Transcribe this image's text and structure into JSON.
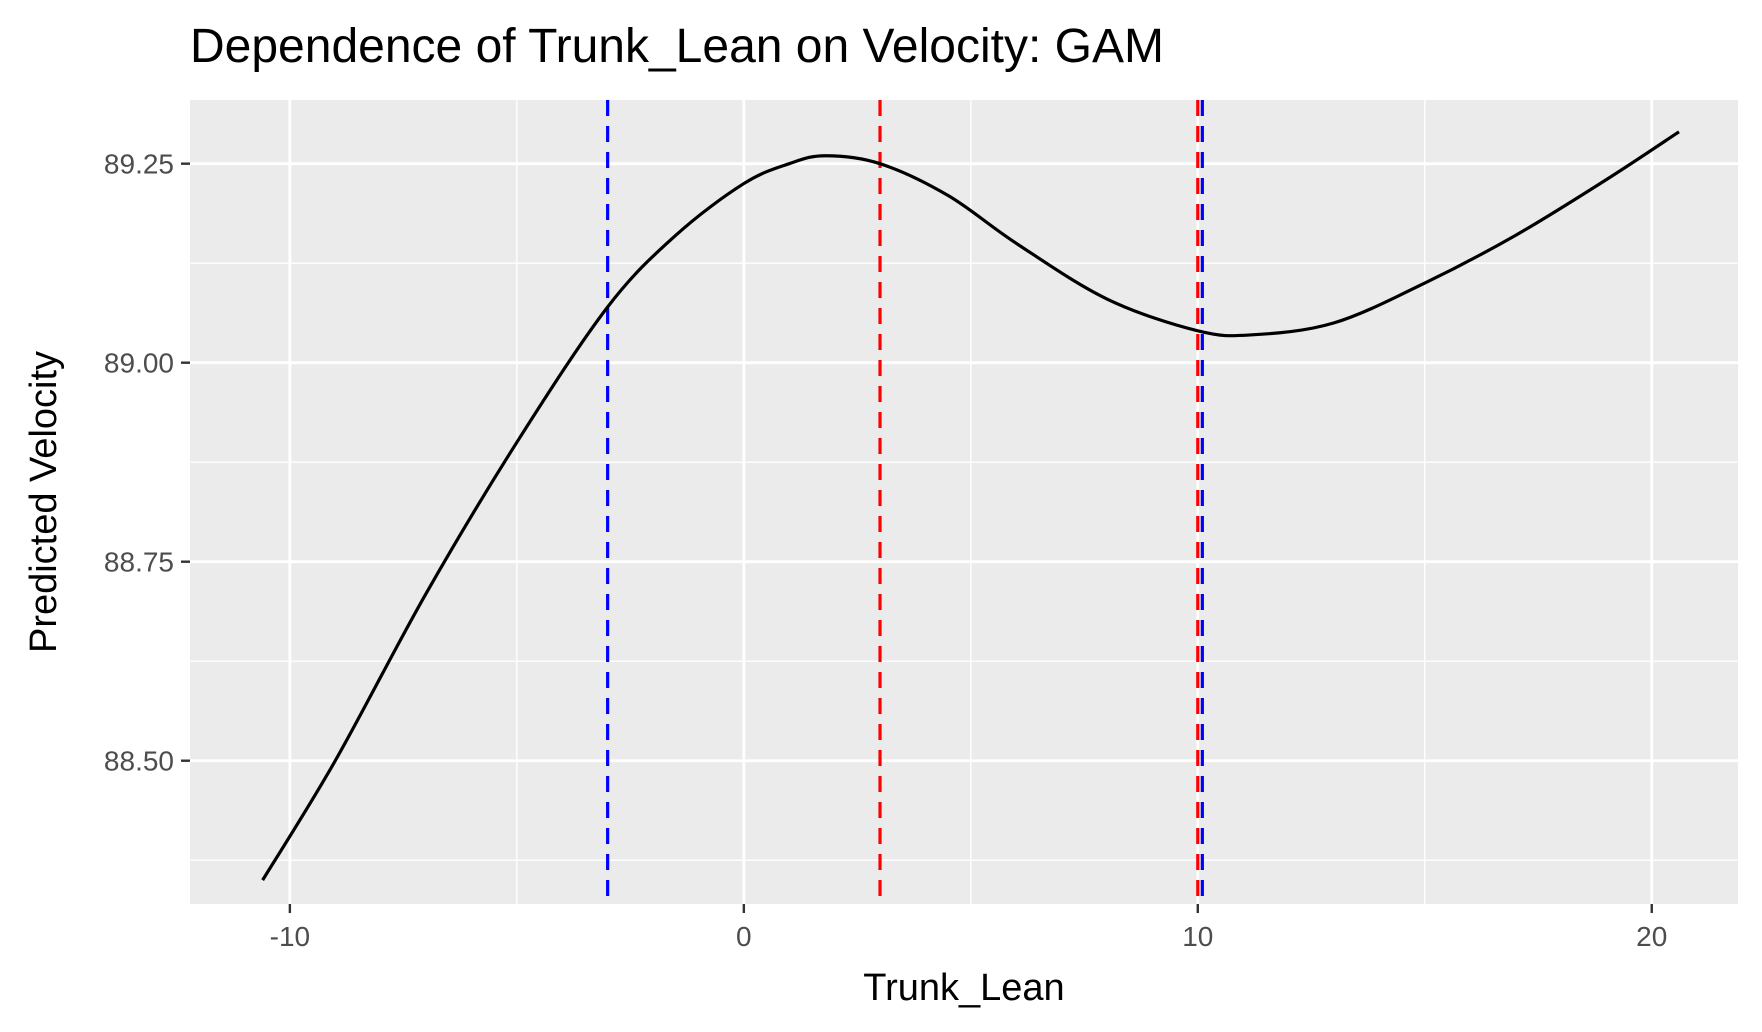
{
  "chart_data": {
    "type": "line",
    "title": "Dependence of Trunk_Lean on Velocity: GAM",
    "xlabel": "Trunk_Lean",
    "ylabel": "Predicted Velocity",
    "xlim": [
      -12.2,
      21.9
    ],
    "ylim": [
      88.32,
      89.33
    ],
    "x_ticks": [
      {
        "value": -10,
        "label": "-10"
      },
      {
        "value": 0,
        "label": "0"
      },
      {
        "value": 10,
        "label": "10"
      },
      {
        "value": 20,
        "label": "20"
      }
    ],
    "x_minor_ticks": [
      -5,
      5,
      15
    ],
    "y_ticks": [
      {
        "value": 88.5,
        "label": "88.50"
      },
      {
        "value": 88.75,
        "label": "88.75"
      },
      {
        "value": 89.0,
        "label": "89.00"
      },
      {
        "value": 89.25,
        "label": "89.25"
      }
    ],
    "y_minor_ticks": [
      88.375,
      88.625,
      88.875,
      89.125
    ],
    "grid": true,
    "series": [
      {
        "color": "#000000",
        "x": [
          -10.6,
          -9.0,
          -7.0,
          -5.0,
          -3.0,
          -1.5,
          0.0,
          1.0,
          1.8,
          3.0,
          4.5,
          6.0,
          8.0,
          10.0,
          11.2,
          13.0,
          15.0,
          17.0,
          19.0,
          20.6
        ],
        "y": [
          88.35,
          88.5,
          88.71,
          88.9,
          89.07,
          89.16,
          89.225,
          89.25,
          89.26,
          89.25,
          89.21,
          89.15,
          89.08,
          89.04,
          89.035,
          89.05,
          89.1,
          89.16,
          89.23,
          89.29
        ]
      }
    ],
    "vlines": [
      {
        "x": -3.0,
        "color": "#0000ff",
        "style": "dashed"
      },
      {
        "x": 3.0,
        "color": "#ff0000",
        "style": "dashed"
      },
      {
        "x": 10.0,
        "color": "#ff0000",
        "style": "dashed"
      },
      {
        "x": 10.1,
        "color": "#0000ff",
        "style": "dashed"
      }
    ],
    "panel_background": "#ebebeb",
    "grid_color": "#ffffff"
  }
}
